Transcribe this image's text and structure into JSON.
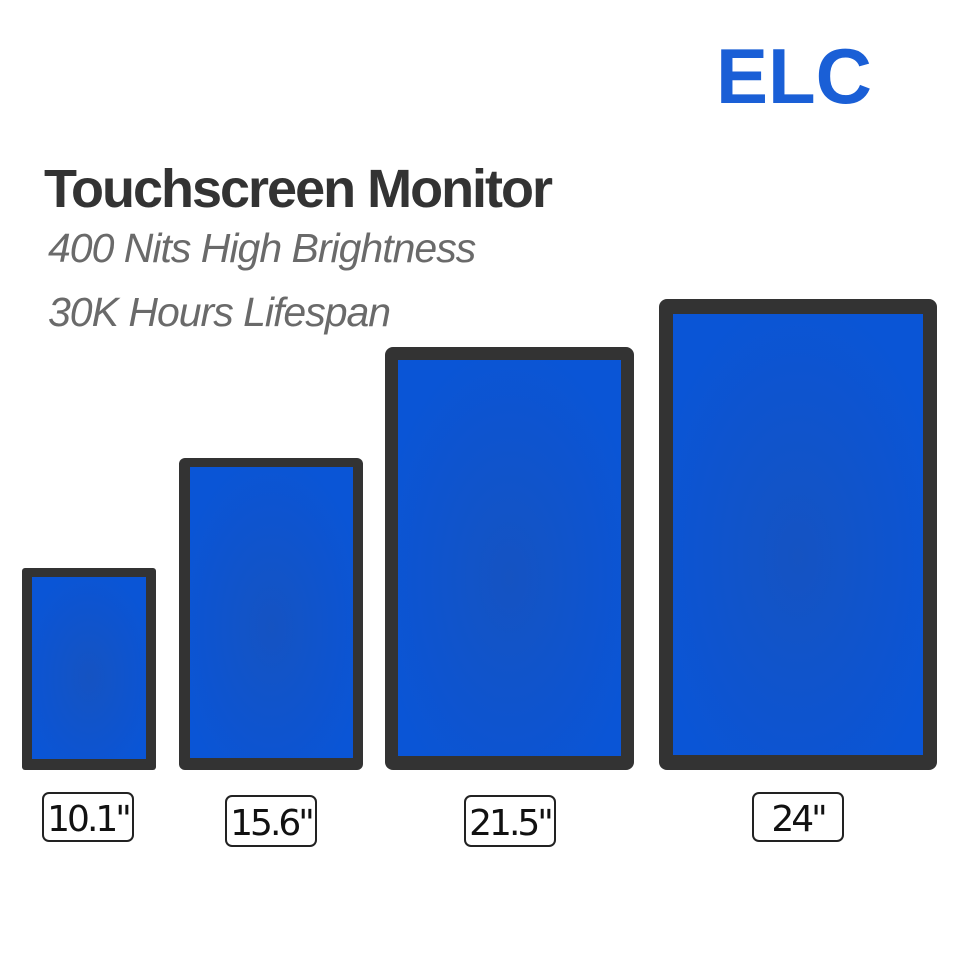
{
  "brand": "ELC",
  "title": "Touchscreen Monitor",
  "subtitles": [
    "400 Nits High Brightness",
    "30K Hours Lifespan"
  ],
  "monitors": [
    {
      "label": "10.1\""
    },
    {
      "label": "15.6\""
    },
    {
      "label": "21.5\""
    },
    {
      "label": "24\""
    }
  ]
}
